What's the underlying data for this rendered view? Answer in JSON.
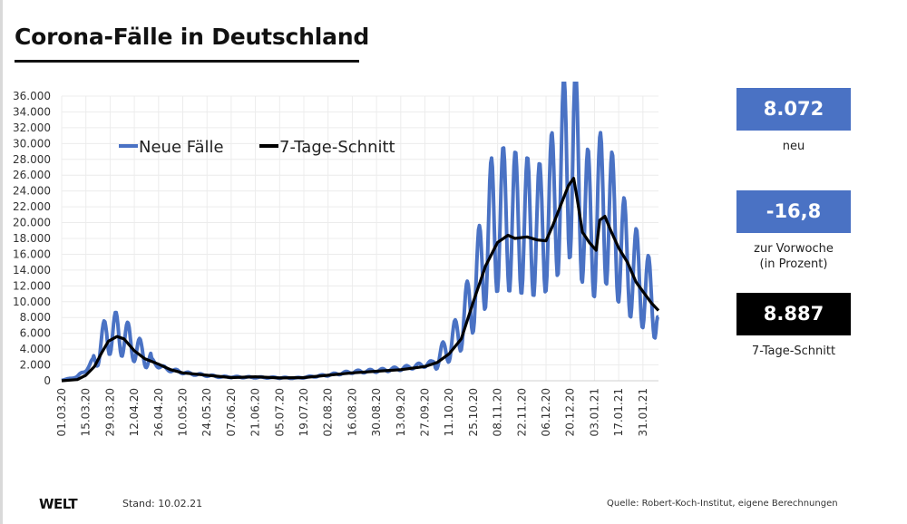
{
  "header": {
    "title": "Corona-Fälle in Deutschland"
  },
  "kpis": [
    {
      "value": "8.072",
      "label": "neu",
      "color": "#4a72c4"
    },
    {
      "value": "-16,8",
      "label": "zur Vorwoche\n(in Prozent)",
      "label_lines": [
        "zur Vorwoche",
        "(in Prozent)"
      ],
      "color": "#4a72c4"
    },
    {
      "value": "8.887",
      "label": "7-Tage-Schnitt",
      "color": "#000000"
    }
  ],
  "footer": {
    "logo": "WELT",
    "stand": "Stand:  10.02.21",
    "source": "Quelle: Robert-Koch-Institut, eigene Berechnungen"
  },
  "chart_data": {
    "type": "line",
    "title": "Corona-Fälle in Deutschland",
    "xlabel": "",
    "ylabel": "",
    "ylim": [
      0,
      36000
    ],
    "yticks": [
      0,
      2000,
      4000,
      6000,
      8000,
      10000,
      12000,
      14000,
      16000,
      18000,
      20000,
      22000,
      24000,
      26000,
      28000,
      30000,
      32000,
      34000,
      36000
    ],
    "ytick_labels": [
      "0",
      "2.000",
      "4.000",
      "6.000",
      "8.000",
      "10.000",
      "12.000",
      "14.000",
      "16.000",
      "18.000",
      "20.000",
      "22.000",
      "24.000",
      "26.000",
      "28.000",
      "30.000",
      "32.000",
      "34.000",
      "36.000"
    ],
    "x_start": "2020-03-01",
    "x_end": "2021-02-09",
    "xtick_labels": [
      "01.03.20",
      "15.03.20",
      "29.03.20",
      "12.04.20",
      "26.04.20",
      "10.05.20",
      "24.05.20",
      "07.06.20",
      "21.06.20",
      "05.07.20",
      "19.07.20",
      "02.08.20",
      "16.08.20",
      "30.08.20",
      "13.09.20",
      "27.09.20",
      "11.10.20",
      "25.10.20",
      "08.11.20",
      "22.11.20",
      "06.12.20",
      "20.12.20",
      "03.01.21",
      "17.01.21",
      "31.01.21"
    ],
    "xtick_interval_days": 14,
    "grid": true,
    "legend": {
      "position": "top-left",
      "entries": [
        "Neue Fälle",
        "7-Tage-Schnitt"
      ]
    },
    "series": [
      {
        "name": "Neue Fälle",
        "color": "#4a72c4",
        "description": "daily new cases, weekly oscillation",
        "anchors": [
          [
            "2020-03-01",
            50
          ],
          [
            "2020-03-10",
            500
          ],
          [
            "2020-03-17",
            1800
          ],
          [
            "2020-03-22",
            3500
          ],
          [
            "2020-03-27",
            6000
          ],
          [
            "2020-04-02",
            6000
          ],
          [
            "2020-04-09",
            5000
          ],
          [
            "2020-04-16",
            3500
          ],
          [
            "2020-04-23",
            2300
          ],
          [
            "2020-04-30",
            1500
          ],
          [
            "2020-05-14",
            900
          ],
          [
            "2020-06-01",
            500
          ],
          [
            "2020-07-01",
            400
          ],
          [
            "2020-07-15",
            350
          ],
          [
            "2020-08-01",
            700
          ],
          [
            "2020-08-15",
            1100
          ],
          [
            "2020-09-01",
            1300
          ],
          [
            "2020-09-15",
            1600
          ],
          [
            "2020-10-01",
            2200
          ],
          [
            "2020-10-08",
            3500
          ],
          [
            "2020-10-15",
            5500
          ],
          [
            "2020-10-22",
            9000
          ],
          [
            "2020-10-29",
            14000
          ],
          [
            "2020-11-05",
            20000
          ],
          [
            "2020-11-12",
            20500
          ],
          [
            "2020-11-19",
            20000
          ],
          [
            "2020-11-26",
            19500
          ],
          [
            "2020-12-03",
            19000
          ],
          [
            "2020-12-10",
            22000
          ],
          [
            "2020-12-17",
            27000
          ],
          [
            "2020-12-22",
            28500
          ],
          [
            "2020-12-28",
            21000
          ],
          [
            "2021-01-03",
            19000
          ],
          [
            "2021-01-08",
            23000
          ],
          [
            "2021-01-14",
            19500
          ],
          [
            "2021-01-21",
            15500
          ],
          [
            "2021-01-28",
            13000
          ],
          [
            "2021-02-03",
            11000
          ],
          [
            "2021-02-09",
            9000
          ]
        ],
        "weekly_amplitude": 0.45,
        "last_value": 8072
      },
      {
        "name": "7-Tage-Schnitt",
        "color": "#000000",
        "points": [
          [
            "2020-03-01",
            0
          ],
          [
            "2020-03-10",
            150
          ],
          [
            "2020-03-15",
            700
          ],
          [
            "2020-03-20",
            1800
          ],
          [
            "2020-03-24",
            3500
          ],
          [
            "2020-03-28",
            5000
          ],
          [
            "2020-04-02",
            5600
          ],
          [
            "2020-04-06",
            5300
          ],
          [
            "2020-04-12",
            3800
          ],
          [
            "2020-04-18",
            2800
          ],
          [
            "2020-04-26",
            2100
          ],
          [
            "2020-05-03",
            1400
          ],
          [
            "2020-05-10",
            1000
          ],
          [
            "2020-05-24",
            700
          ],
          [
            "2020-06-07",
            400
          ],
          [
            "2020-06-21",
            500
          ],
          [
            "2020-07-05",
            350
          ],
          [
            "2020-07-19",
            400
          ],
          [
            "2020-08-02",
            700
          ],
          [
            "2020-08-16",
            1000
          ],
          [
            "2020-08-30",
            1200
          ],
          [
            "2020-09-13",
            1400
          ],
          [
            "2020-09-27",
            1800
          ],
          [
            "2020-10-04",
            2300
          ],
          [
            "2020-10-11",
            3400
          ],
          [
            "2020-10-18",
            5300
          ],
          [
            "2020-10-25",
            10000
          ],
          [
            "2020-11-01",
            14500
          ],
          [
            "2020-11-08",
            17500
          ],
          [
            "2020-11-14",
            18400
          ],
          [
            "2020-11-18",
            18000
          ],
          [
            "2020-11-25",
            18200
          ],
          [
            "2020-12-01",
            17800
          ],
          [
            "2020-12-06",
            17700
          ],
          [
            "2020-12-10",
            19700
          ],
          [
            "2020-12-15",
            22500
          ],
          [
            "2020-12-19",
            24700
          ],
          [
            "2020-12-22",
            25600
          ],
          [
            "2020-12-24",
            23000
          ],
          [
            "2020-12-27",
            18800
          ],
          [
            "2020-12-31",
            17500
          ],
          [
            "2021-01-04",
            16500
          ],
          [
            "2021-01-06",
            20300
          ],
          [
            "2021-01-09",
            20800
          ],
          [
            "2021-01-12",
            19200
          ],
          [
            "2021-01-17",
            16800
          ],
          [
            "2021-01-22",
            15000
          ],
          [
            "2021-01-27",
            12500
          ],
          [
            "2021-02-01",
            11000
          ],
          [
            "2021-02-05",
            9800
          ],
          [
            "2021-02-09",
            8887
          ]
        ]
      }
    ]
  }
}
